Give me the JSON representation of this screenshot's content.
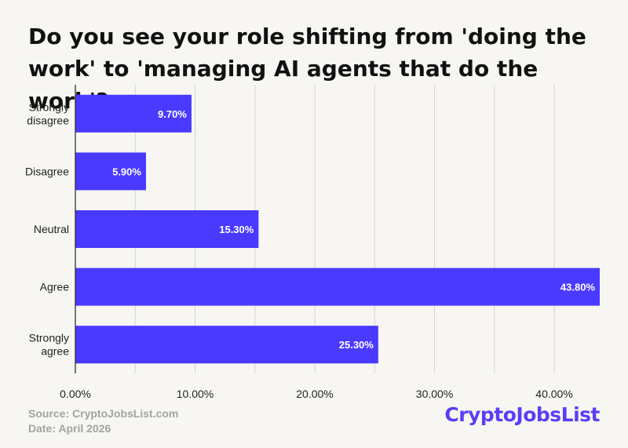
{
  "title": "Do you see your role shifting from 'doing the work' to 'managing AI agents that do the work'?",
  "footer": {
    "source": "Source: CryptoJobsList.com",
    "date": "Date: April 2026"
  },
  "logo": {
    "text": "CryptoJobsList"
  },
  "colors": {
    "bar": "#4a3aff",
    "grid": "#d4d4d4",
    "axis": "#222222",
    "brand": "#5b3ef5",
    "background": "#f7f6f2"
  },
  "chart_data": {
    "type": "bar",
    "orientation": "horizontal",
    "categories": [
      [
        "Strongly",
        "disagree"
      ],
      [
        "Disagree"
      ],
      [
        "Neutral"
      ],
      [
        "Agree"
      ],
      [
        "Strongly",
        "agree"
      ]
    ],
    "values": [
      9.7,
      5.9,
      15.3,
      43.8,
      25.3
    ],
    "value_labels": [
      "9.70%",
      "5.90%",
      "15.30%",
      "43.80%",
      "25.30%"
    ],
    "xlim": [
      0,
      43.8
    ],
    "x_ticks": [
      0,
      10,
      20,
      30,
      40
    ],
    "x_tick_labels": [
      "0.00%",
      "10.00%",
      "20.00%",
      "30.00%",
      "40.00%"
    ],
    "grid": true
  }
}
